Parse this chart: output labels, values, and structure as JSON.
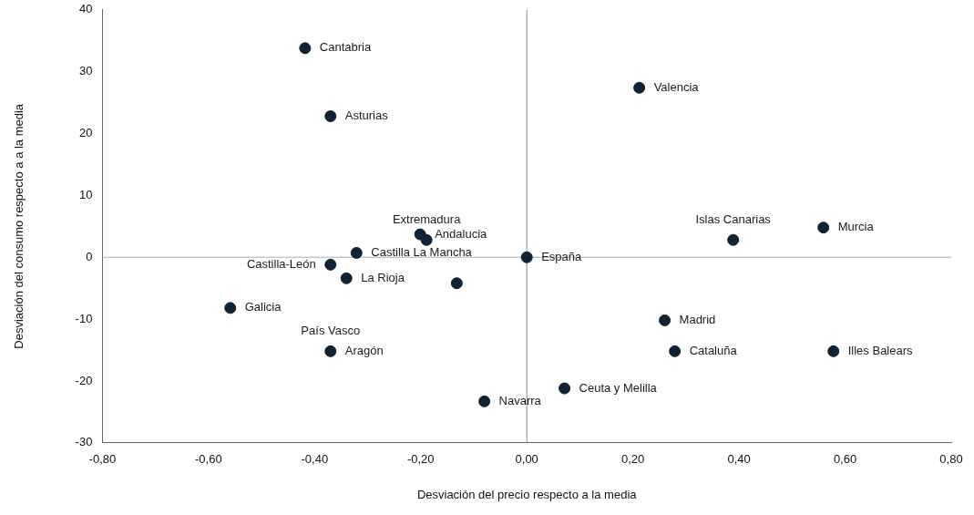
{
  "chart_data": {
    "type": "scatter",
    "xlabel": "Desviación del precio respecto a la media",
    "ylabel": "Desviación del consumo respecto a a la media",
    "x": [
      -0.418,
      -0.37,
      0.212,
      -0.201,
      -0.189,
      -0.321,
      0,
      0.389,
      0.559,
      -0.37,
      -0.34,
      -0.132,
      -0.559,
      0.26,
      -0.37,
      0.279,
      0.578,
      0.071,
      -0.08
    ],
    "series": [
      {
        "color": "#0f2236",
        "values": [
          33.8,
          22.8,
          27.4,
          3.7,
          2.8,
          0.7,
          0,
          2.8,
          4.8,
          -1.2,
          -3.4,
          -4.2,
          -8.2,
          -10.2,
          -15.2,
          -15.2,
          -15.2,
          -21.2,
          -23.3
        ]
      }
    ],
    "marker": "circle",
    "legend": false,
    "grid": false,
    "xlim": [
      -0.8,
      0.8
    ],
    "xticks": [
      {
        "value": -0.8,
        "label": "-0,80"
      },
      {
        "value": -0.6,
        "label": "-0,60"
      },
      {
        "value": -0.4,
        "label": "-0,40"
      },
      {
        "value": -0.2,
        "label": "-0,20"
      },
      {
        "value": 0,
        "label": "0,00"
      },
      {
        "value": 0.2,
        "label": "0,20"
      },
      {
        "value": 0.4,
        "label": "0,40"
      },
      {
        "value": 0.6,
        "label": "0,60"
      },
      {
        "value": 0.8,
        "label": "0,80"
      }
    ],
    "ylim": [
      -30,
      40
    ],
    "yticks": [
      -30,
      -20,
      -10,
      0,
      10,
      20,
      30,
      40
    ],
    "ref_lines": [
      {
        "axis": "x",
        "value": 0,
        "color": "#7f8f9f"
      },
      {
        "axis": "y",
        "value": 0,
        "color": "#a3b0bc"
      }
    ],
    "annotations": [
      {
        "text": "Cantabria",
        "x": -0.418,
        "y": 33.8
      },
      {
        "text": "Asturias",
        "x": -0.37,
        "y": 22.8
      },
      {
        "text": "Valencia",
        "x": 0.212,
        "y": 27.4
      },
      {
        "text": "Andalucia",
        "x": -0.201,
        "y": 3.7
      },
      {
        "text": "Extremadura",
        "x": -0.189,
        "y": 2.8
      },
      {
        "text": "Castilla La Mancha",
        "x": -0.321,
        "y": 0.7
      },
      {
        "text": "España",
        "x": 0,
        "y": 0
      },
      {
        "text": "Islas Canarias",
        "x": 0.389,
        "y": 2.8
      },
      {
        "text": "Murcia",
        "x": 0.559,
        "y": 4.8
      },
      {
        "text": "La Rioja",
        "x": -0.34,
        "y": -3.4
      },
      {
        "text": "Castilla-León",
        "x": -0.37,
        "y": -1.2
      },
      {
        "text": "Galicia",
        "x": -0.559,
        "y": -8.2
      },
      {
        "text": "Aragón",
        "x": -0.37,
        "y": -15.2
      },
      {
        "text": "País Vasco",
        "x": -0.37,
        "y": -15.2
      },
      {
        "text": "Madrid",
        "x": 0.26,
        "y": -10.2
      },
      {
        "text": "Cataluña",
        "x": 0.279,
        "y": -15.2
      },
      {
        "text": "Illes Balears",
        "x": 0.578,
        "y": -15.2
      },
      {
        "text": "Ceuta y Melilla",
        "x": 0.071,
        "y": -21.2
      },
      {
        "text": "Navarra",
        "x": -0.08,
        "y": -23.3
      }
    ]
  }
}
